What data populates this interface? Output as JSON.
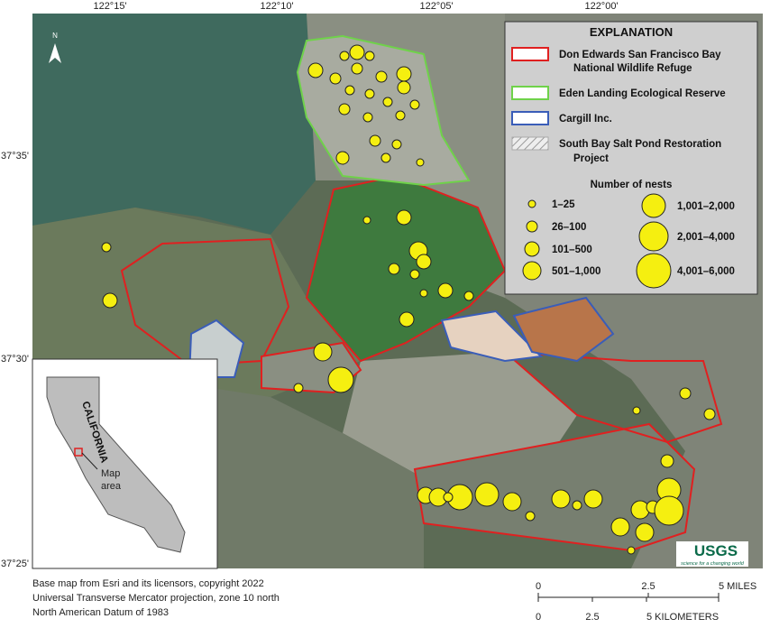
{
  "map": {
    "lon_labels": [
      "122°15'",
      "122°10'",
      "122°05'",
      "122°00'"
    ],
    "lat_labels": [
      "37°35'",
      "37°30'",
      "37°25'"
    ],
    "north": "N"
  },
  "legend": {
    "title": "EXPLANATION",
    "refuge": [
      "Don Edwards San Francisco Bay",
      "National Wildlife Refuge"
    ],
    "eden": "Eden Landing Ecological Reserve",
    "cargill": "Cargill Inc.",
    "salt_pond": [
      "South Bay Salt Pond Restoration",
      "Project"
    ],
    "nests_title": "Number of nests",
    "nest_classes": [
      "1–25",
      "26–100",
      "101–500",
      "501–1,000",
      "1,001–2,000",
      "2,001–4,000",
      "4,001–6,000"
    ]
  },
  "inset": {
    "state": "CALIFORNIA",
    "area": [
      "Map",
      "area"
    ]
  },
  "logo": {
    "name": "USGS",
    "tagline": "science for a changing world"
  },
  "credits": [
    "Base map from Esri and its licensors, copyright 2022",
    "Universal Transverse Mercator projection, zone 10 north",
    "North American Datum of 1983"
  ],
  "scale": {
    "miles": [
      "0",
      "2.5",
      "5 MILES"
    ],
    "km": [
      "0",
      "2.5",
      "5 KILOMETERS"
    ]
  }
}
